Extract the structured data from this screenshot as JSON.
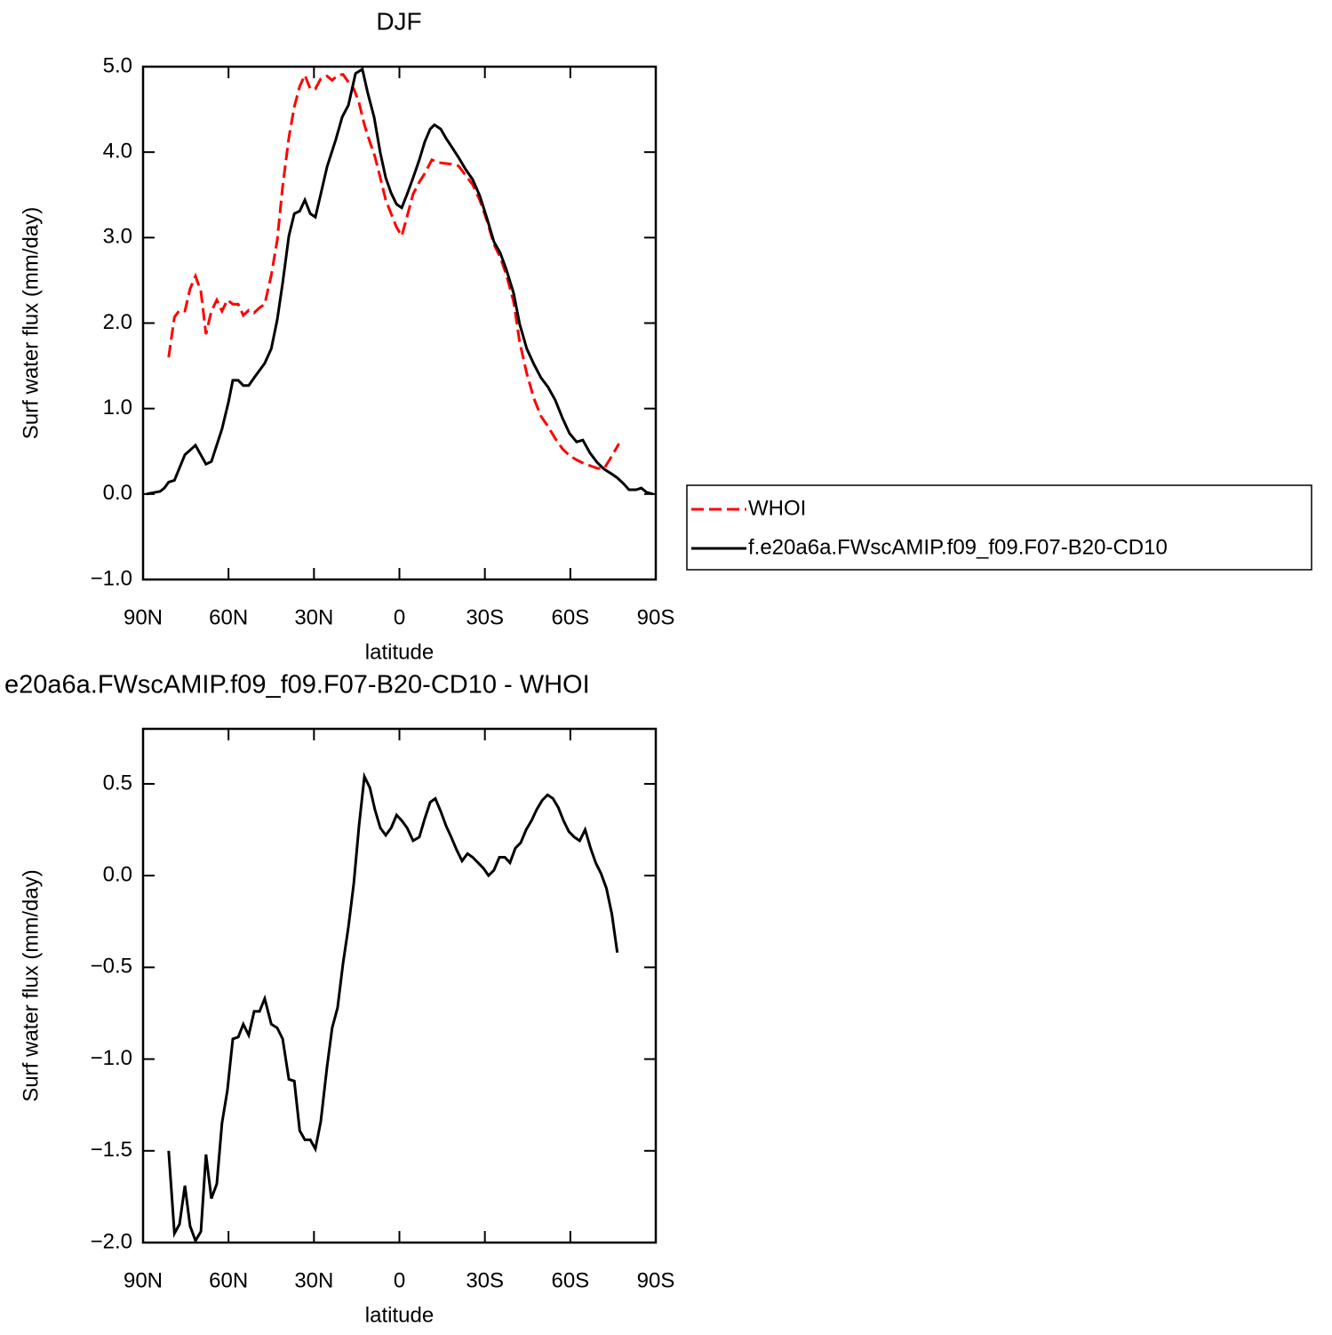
{
  "chart_data": [
    {
      "type": "line",
      "title": "DJF",
      "xlabel": "latitude",
      "ylabel": "Surf water flux (mm/day)",
      "xlim": [
        90,
        -90
      ],
      "xticks": [
        {
          "value": 90,
          "label": "90N"
        },
        {
          "value": 60,
          "label": "60N"
        },
        {
          "value": 30,
          "label": "30N"
        },
        0,
        {
          "value": -30,
          "label": "30S"
        },
        {
          "value": -60,
          "label": "60S"
        },
        {
          "value": -90,
          "label": "90S"
        }
      ],
      "ylim": [
        -1,
        5
      ],
      "yticks": [
        {
          "value": -1,
          "label": "−1.0"
        },
        {
          "value": 0,
          "label": "0.0"
        },
        {
          "value": 1,
          "label": "1.0"
        },
        {
          "value": 2,
          "label": "2.0"
        },
        {
          "value": 3,
          "label": "3.0"
        },
        {
          "value": 4,
          "label": "4.0"
        },
        {
          "value": 5,
          "label": "5.0"
        }
      ],
      "legend": "right",
      "series": [
        {
          "name": "WHOI",
          "color": "#ff0000",
          "dash": "dashed",
          "x": [
            81,
            79,
            77.2,
            75.3,
            73.5,
            71.6,
            69.7,
            67.9,
            66,
            64.1,
            62.3,
            60.4,
            58.5,
            56.6,
            54.8,
            52.9,
            51,
            49.1,
            47.3,
            45,
            42.9,
            41,
            38.8,
            36.9,
            35,
            33.2,
            31.3,
            29.5,
            27.6,
            25.4,
            23.6,
            21.7,
            19.8,
            17.9,
            16,
            14.2,
            12.3,
            10.4,
            8.6,
            6.7,
            4.8,
            2.9,
            1.0,
            -0.8,
            -2.7,
            -4.8,
            -7,
            -8.9,
            -11.4,
            -13.5,
            -15.7,
            -18.2,
            -20.7,
            -23.2,
            -25.7,
            -28.2,
            -30.7,
            -33.2,
            -35.4,
            -37.6,
            -40.1,
            -42.2,
            -44.7,
            -47.2,
            -49.7,
            -52.2,
            -54.7,
            -57.2,
            -59.7,
            -62.2,
            -64.6,
            -67.1,
            -69.6,
            -71.9,
            -74.3,
            -77.1
          ],
          "values": [
            1.6,
            2.07,
            2.15,
            2.14,
            2.4,
            2.55,
            2.37,
            1.87,
            2.14,
            2.27,
            2.14,
            2.27,
            2.22,
            2.22,
            2.09,
            2.15,
            2.12,
            2.18,
            2.22,
            2.56,
            2.97,
            3.6,
            4.17,
            4.53,
            4.77,
            4.9,
            4.74,
            4.74,
            4.86,
            4.89,
            4.84,
            4.9,
            4.91,
            4.82,
            4.74,
            4.58,
            4.32,
            4.12,
            3.95,
            3.7,
            3.44,
            3.28,
            3.12,
            3.02,
            3.25,
            3.51,
            3.65,
            3.75,
            3.91,
            3.88,
            3.87,
            3.86,
            3.84,
            3.73,
            3.62,
            3.44,
            3.2,
            2.92,
            2.77,
            2.56,
            2.25,
            1.78,
            1.41,
            1.12,
            0.91,
            0.79,
            0.65,
            0.53,
            0.45,
            0.4,
            0.36,
            0.33,
            0.3,
            0.3,
            0.43,
            0.59
          ]
        },
        {
          "name": "f.e20a6a.FWscAMIP.f09_f09.F07-B20-CD10",
          "color": "#000000",
          "dash": "solid",
          "x": [
            88.8,
            84,
            82.5,
            81,
            79,
            75.3,
            71.6,
            67.9,
            66,
            62.3,
            60,
            58.5,
            56.6,
            54.8,
            52.9,
            51,
            47.3,
            45,
            42.9,
            41,
            38.8,
            36.9,
            35,
            33.2,
            31.3,
            29.5,
            27.6,
            25.4,
            22.3,
            20.1,
            17.9,
            15.4,
            13,
            11.1,
            8.9,
            6.7,
            4.8,
            2.9,
            1.0,
            -0.8,
            -2.7,
            -4.8,
            -7,
            -8.9,
            -10.8,
            -12.3,
            -14.5,
            -16.4,
            -18.2,
            -20.7,
            -23.2,
            -25.7,
            -28.2,
            -30.7,
            -33.2,
            -35.4,
            -37.6,
            -40.1,
            -42.2,
            -44.7,
            -47.2,
            -49.7,
            -52.2,
            -54.7,
            -57.2,
            -59.7,
            -62.2,
            -64.4,
            -66.9,
            -69.4,
            -71.9,
            -74.3,
            -76.5,
            -78.7,
            -80.6,
            -83.1,
            -84.9,
            -86.8,
            -89
          ],
          "values": [
            0.0,
            0.03,
            0.07,
            0.14,
            0.16,
            0.46,
            0.57,
            0.35,
            0.38,
            0.76,
            1.08,
            1.33,
            1.33,
            1.27,
            1.27,
            1.36,
            1.53,
            1.7,
            2.04,
            2.47,
            3.02,
            3.28,
            3.31,
            3.44,
            3.28,
            3.24,
            3.51,
            3.83,
            4.15,
            4.41,
            4.55,
            4.92,
            4.97,
            4.69,
            4.41,
            3.99,
            3.7,
            3.52,
            3.39,
            3.35,
            3.51,
            3.7,
            3.91,
            4.12,
            4.27,
            4.32,
            4.27,
            4.16,
            4.07,
            3.94,
            3.8,
            3.68,
            3.49,
            3.23,
            2.95,
            2.82,
            2.62,
            2.35,
            1.99,
            1.7,
            1.52,
            1.36,
            1.25,
            1.1,
            0.89,
            0.71,
            0.61,
            0.63,
            0.48,
            0.37,
            0.29,
            0.24,
            0.19,
            0.12,
            0.05,
            0.05,
            0.07,
            0.02,
            0.0
          ]
        }
      ]
    },
    {
      "type": "line",
      "title": "e20a6a.FWscAMIP.f09_f09.F07-B20-CD10 - WHOI",
      "xlabel": "latitude",
      "ylabel": "Surf water flux (mm/day)",
      "xlim": [
        90,
        -90
      ],
      "xticks": [
        {
          "value": 90,
          "label": "90N"
        },
        {
          "value": 60,
          "label": "60N"
        },
        {
          "value": 30,
          "label": "30N"
        },
        0,
        {
          "value": -30,
          "label": "30S"
        },
        {
          "value": -60,
          "label": "60S"
        },
        {
          "value": -90,
          "label": "90S"
        }
      ],
      "ylim": [
        -2,
        0.8
      ],
      "yticks": [
        {
          "value": -2,
          "label": "−2.0"
        },
        {
          "value": -1.5,
          "label": "−1.5"
        },
        {
          "value": -1,
          "label": "−1.0"
        },
        {
          "value": -0.5,
          "label": "−0.5"
        },
        {
          "value": 0,
          "label": "0.0"
        },
        0.5
      ],
      "series": [
        {
          "color": "#000000",
          "dash": "solid",
          "x": [
            81,
            79,
            77.2,
            75.3,
            73.5,
            71.6,
            69.7,
            67.9,
            66,
            64.1,
            62.3,
            60.4,
            58.5,
            56.6,
            54.8,
            52.9,
            51,
            49.1,
            47.3,
            45,
            42.9,
            41,
            38.8,
            36.9,
            35,
            33.2,
            31.3,
            29.5,
            27.6,
            25.4,
            23.6,
            21.7,
            19.8,
            17.9,
            16,
            14.2,
            12.3,
            10.4,
            8.6,
            6.7,
            4.8,
            2.9,
            1.0,
            -0.8,
            -2.7,
            -4.8,
            -7,
            -8.9,
            -10.8,
            -12.6,
            -14.5,
            -16.4,
            -18.2,
            -20.1,
            -22,
            -23.9,
            -25.7,
            -27.6,
            -29.5,
            -31.3,
            -33.2,
            -35.1,
            -37,
            -38.8,
            -40.7,
            -42.6,
            -44.5,
            -46.4,
            -48.2,
            -50.1,
            -52,
            -53.9,
            -55.8,
            -57.6,
            -59.5,
            -61.4,
            -63.3,
            -65.2,
            -67.1,
            -68.9,
            -70.8,
            -72.7,
            -74.6,
            -76.5
          ],
          "values": [
            -1.5,
            -1.95,
            -1.9,
            -1.69,
            -1.91,
            -1.99,
            -1.94,
            -1.52,
            -1.76,
            -1.68,
            -1.35,
            -1.17,
            -0.89,
            -0.88,
            -0.81,
            -0.87,
            -0.74,
            -0.74,
            -0.67,
            -0.81,
            -0.83,
            -0.89,
            -1.11,
            -1.12,
            -1.39,
            -1.44,
            -1.44,
            -1.49,
            -1.34,
            -1.04,
            -0.83,
            -0.72,
            -0.48,
            -0.28,
            -0.04,
            0.27,
            0.54,
            0.48,
            0.36,
            0.26,
            0.22,
            0.26,
            0.33,
            0.3,
            0.26,
            0.19,
            0.21,
            0.31,
            0.4,
            0.42,
            0.35,
            0.27,
            0.21,
            0.14,
            0.08,
            0.12,
            0.1,
            0.07,
            0.04,
            0.0,
            0.03,
            0.1,
            0.1,
            0.07,
            0.15,
            0.18,
            0.25,
            0.3,
            0.36,
            0.41,
            0.44,
            0.42,
            0.37,
            0.3,
            0.24,
            0.21,
            0.19,
            0.25,
            0.15,
            0.07,
            0.01,
            -0.07,
            -0.21,
            -0.42
          ]
        }
      ]
    }
  ]
}
